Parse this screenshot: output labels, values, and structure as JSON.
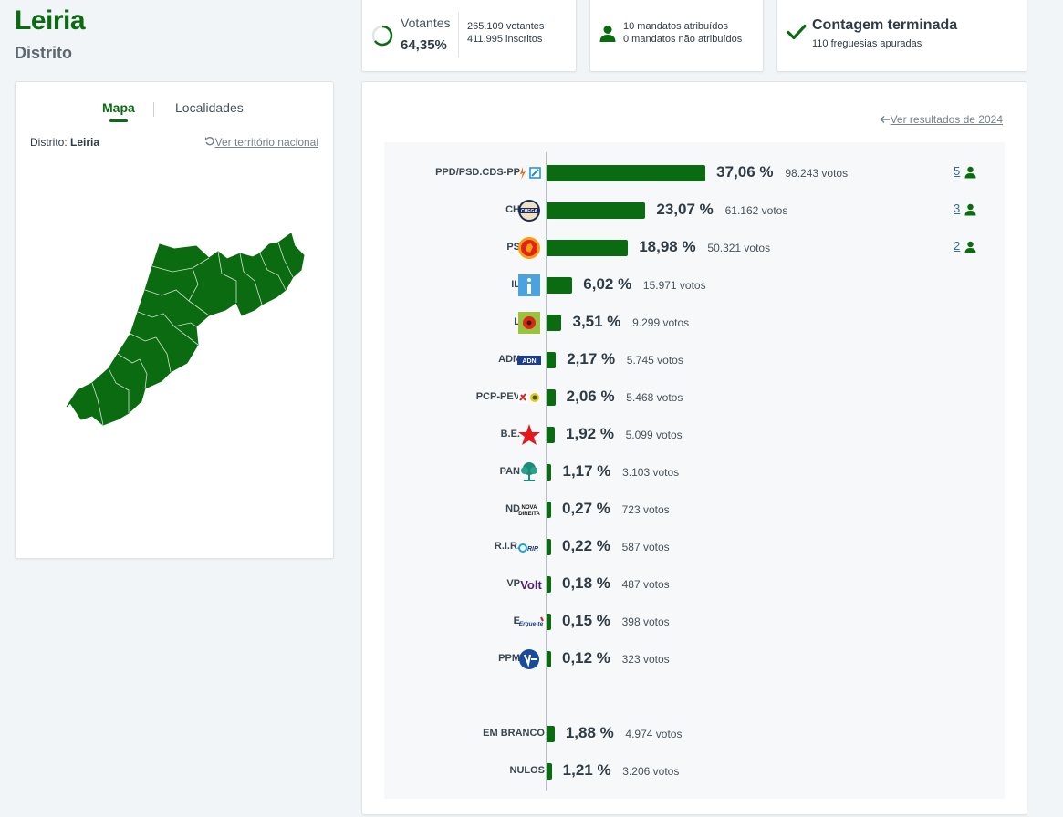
{
  "header": {
    "title": "Leiria",
    "subtitle": "Distrito"
  },
  "stats": {
    "turnout": {
      "label": "Votantes",
      "percent": "64,35%",
      "value": 0.6435,
      "voters": "265.109 votantes",
      "registered": "411.995 inscritos"
    },
    "seats": {
      "assigned": "10 mandatos atribuídos",
      "unassigned": "0 mandatos não atribuídos"
    },
    "count": {
      "title": "Contagem terminada",
      "detail": "110 freguesias apuradas"
    }
  },
  "map_panel": {
    "tabs": [
      "Mapa",
      "Localidades"
    ],
    "district_label": "Distrito:",
    "district_value": "Leiria",
    "national_link": "Ver território nacional"
  },
  "results": {
    "prev_link": "Ver resultados de 2024",
    "parties": [
      {
        "name": "PPD/PSD.CDS-PP",
        "logo": "ad-logo",
        "percent": "37,06 %",
        "value": 37.06,
        "votes": "98.243 votos",
        "seats": "5"
      },
      {
        "name": "CH",
        "logo": "chega-logo",
        "percent": "23,07 %",
        "value": 23.07,
        "votes": "61.162 votos",
        "seats": "3"
      },
      {
        "name": "PS",
        "logo": "ps-logo",
        "percent": "18,98 %",
        "value": 18.98,
        "votes": "50.321 votos",
        "seats": "2"
      },
      {
        "name": "IL",
        "logo": "il-logo",
        "percent": "6,02 %",
        "value": 6.02,
        "votes": "15.971 votos"
      },
      {
        "name": "L",
        "logo": "livre-logo",
        "percent": "3,51 %",
        "value": 3.51,
        "votes": "9.299 votos"
      },
      {
        "name": "ADN",
        "logo": "adn-logo",
        "percent": "2,17 %",
        "value": 2.17,
        "votes": "5.745 votos"
      },
      {
        "name": "PCP-PEV",
        "logo": "cdu-logo",
        "percent": "2,06 %",
        "value": 2.06,
        "votes": "5.468 votos"
      },
      {
        "name": "B.E.",
        "logo": "be-logo",
        "percent": "1,92 %",
        "value": 1.92,
        "votes": "5.099 votos"
      },
      {
        "name": "PAN",
        "logo": "pan-logo",
        "percent": "1,17 %",
        "value": 1.17,
        "votes": "3.103 votos"
      },
      {
        "name": "ND",
        "logo": "nd-logo",
        "logo_text": [
          "NOVA",
          "DIREITA"
        ],
        "percent": "0,27 %",
        "value": 0.27,
        "votes": "723 votos"
      },
      {
        "name": "R.I.R.",
        "logo": "rir-logo",
        "logo_text": [
          "RIR"
        ],
        "percent": "0,22 %",
        "value": 0.22,
        "votes": "587 votos"
      },
      {
        "name": "VP",
        "logo": "volt-logo",
        "logo_text": [
          "Volt"
        ],
        "percent": "0,18 %",
        "value": 0.18,
        "votes": "487 votos"
      },
      {
        "name": "E",
        "logo": "ergue-te-logo",
        "logo_text": [
          "Ergue-te"
        ],
        "percent": "0,15 %",
        "value": 0.15,
        "votes": "398 votos"
      },
      {
        "name": "PPM",
        "logo": "ppm-logo",
        "percent": "0,12 %",
        "value": 0.12,
        "votes": "323 votos"
      }
    ],
    "other": [
      {
        "name": "EM BRANCO",
        "percent": "1,88 %",
        "value": 1.88,
        "votes": "4.974 votos"
      },
      {
        "name": "NULOS",
        "percent": "1,21 %",
        "value": 1.21,
        "votes": "3.206 votos"
      }
    ]
  },
  "colors": {
    "brand_green": "#0b6b10",
    "link_blue": "#3a6a9a"
  }
}
